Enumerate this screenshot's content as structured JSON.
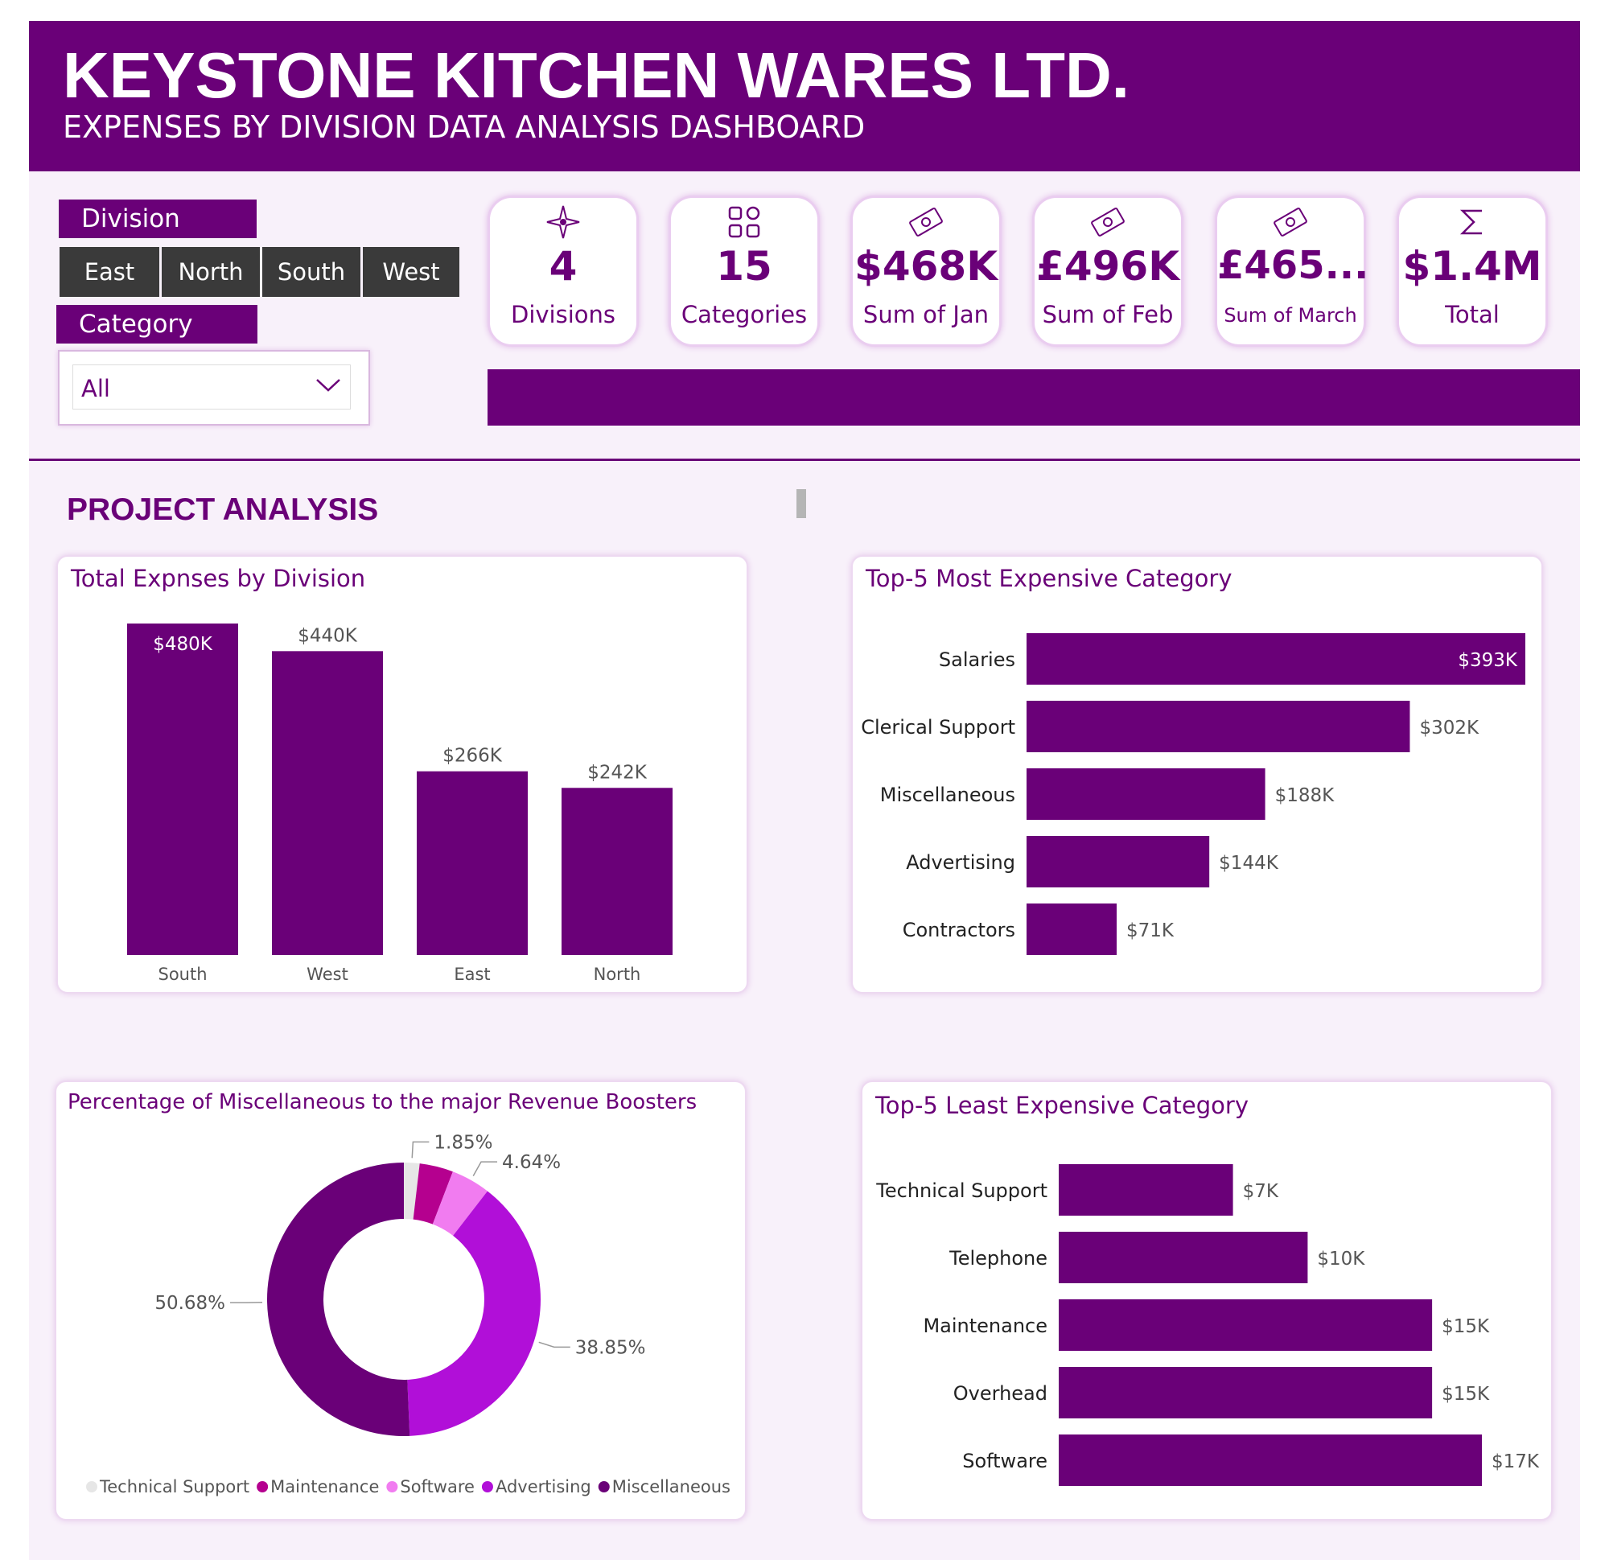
{
  "header": {
    "title": "KEYSTONE KITCHEN WARES LTD.",
    "subtitle": "EXPENSES BY DIVISION DATA ANALYSIS DASHBOARD"
  },
  "slicers": {
    "division_title": "Division",
    "division_options": [
      "East",
      "North",
      "South",
      "West"
    ],
    "category_title": "Category",
    "category_selected": "All"
  },
  "kpis": [
    {
      "icon": "compass-star-icon",
      "value": "4",
      "label": "Divisions"
    },
    {
      "icon": "grid-squares-icon",
      "value": "15",
      "label": "Categories"
    },
    {
      "icon": "money-icon",
      "value": "$468K",
      "label": "Sum of Jan"
    },
    {
      "icon": "money-icon",
      "value": "£496K",
      "label": "Sum of Feb"
    },
    {
      "icon": "money-icon",
      "value": "£465...",
      "label": "Sum of March"
    },
    {
      "icon": "sigma-icon",
      "value": "$1.4M",
      "label": "Total"
    }
  ],
  "section_title": "PROJECT ANALYSIS",
  "colors": {
    "primary": "#6a0078",
    "background": "#f8f1fa"
  },
  "chart_data": [
    {
      "type": "bar",
      "title": "Total Expnses by Division",
      "categories": [
        "South",
        "West",
        "East",
        "North"
      ],
      "values": [
        480,
        440,
        266,
        242
      ],
      "labels": [
        "$480K",
        "$440K",
        "$266K",
        "$242K"
      ],
      "unit": "$K"
    },
    {
      "type": "bar",
      "orientation": "horizontal",
      "title": "Top-5 Most Expensive Category",
      "categories": [
        "Salaries",
        "Clerical Support",
        "Miscellaneous",
        "Advertising",
        "Contractors"
      ],
      "values": [
        393,
        302,
        188,
        144,
        71
      ],
      "labels": [
        "$393K",
        "$302K",
        "$188K",
        "$144K",
        "$71K"
      ],
      "unit": "$K"
    },
    {
      "type": "pie",
      "title": "Percentage of Miscellaneous to the major Revenue Boosters",
      "categories": [
        "Technical Support",
        "Maintenance",
        "Software",
        "Advertising",
        "Miscellaneous"
      ],
      "values": [
        1.85,
        3.98,
        4.64,
        38.85,
        50.68
      ],
      "labels": [
        "1.85%",
        "",
        "4.64%",
        "38.85%",
        "50.68%"
      ],
      "colors": [
        "#e6e6e6",
        "#b5008f",
        "#f17cf0",
        "#b10fd8",
        "#6a0078"
      ],
      "legend": "bottom"
    },
    {
      "type": "bar",
      "orientation": "horizontal",
      "title": "Top-5 Least Expensive Category",
      "categories": [
        "Technical Support",
        "Telephone",
        "Maintenance",
        "Overhead",
        "Software"
      ],
      "values": [
        7,
        10,
        15,
        15,
        17
      ],
      "labels": [
        "$7K",
        "$10K",
        "$15K",
        "$15K",
        "$17K"
      ],
      "unit": "$K"
    }
  ]
}
